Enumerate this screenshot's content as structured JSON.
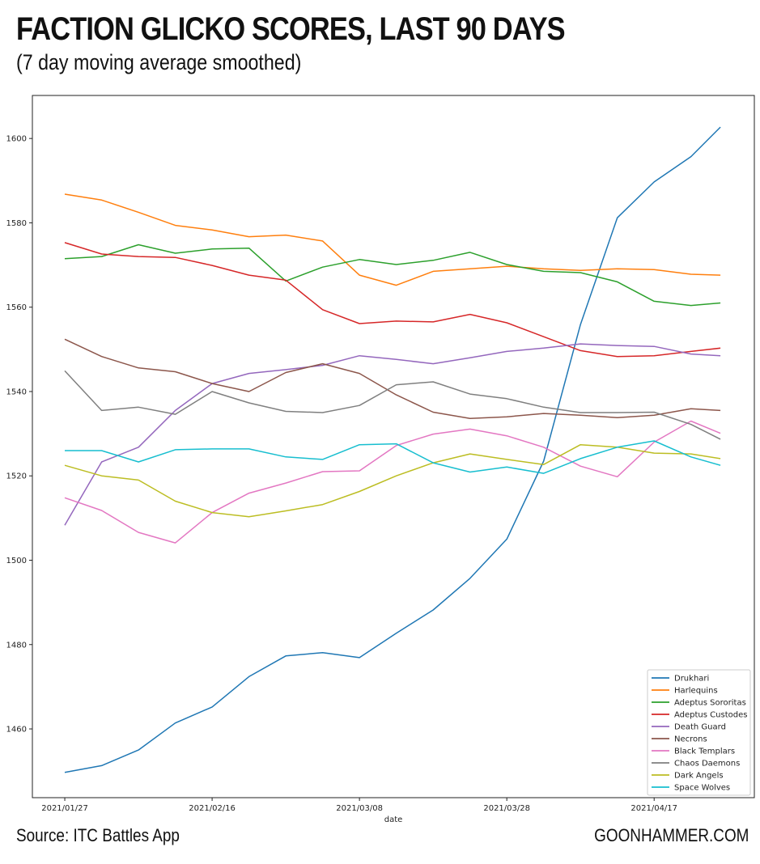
{
  "header": {
    "title": "FACTION GLICKO SCORES, LAST 90 DAYS",
    "subtitle": "(7 day moving average smoothed)"
  },
  "footer": {
    "source": "Source: ITC Battles App",
    "site": "GOONHAMMER.COM"
  },
  "chart_data": {
    "type": "line",
    "title": "FACTION GLICKO SCORES, LAST 90 DAYS",
    "subtitle": "(7 day moving average smoothed)",
    "xlabel": "date",
    "ylabel": "",
    "x_unit": "days since 2021/01/27",
    "x": [
      0,
      5,
      10,
      15,
      20,
      25,
      30,
      35,
      40,
      45,
      50,
      55,
      60,
      65,
      70,
      75,
      80,
      85,
      89
    ],
    "xlim": [
      -4.4,
      93.6
    ],
    "ylim": [
      1443.7,
      1610.2
    ],
    "xticks": [
      {
        "day": 0,
        "label": "2021/01/27"
      },
      {
        "day": 20,
        "label": "2021/02/16"
      },
      {
        "day": 40,
        "label": "2021/03/08"
      },
      {
        "day": 60,
        "label": "2021/03/28"
      },
      {
        "day": 80,
        "label": "2021/04/17"
      }
    ],
    "yticks": [
      1460,
      1480,
      1500,
      1520,
      1540,
      1560,
      1580,
      1600
    ],
    "grid": false,
    "legend_position": "bottom-right",
    "series": [
      {
        "name": "Drukhari",
        "color": "#1f77b4",
        "values": [
          1449.7,
          1451.3,
          1455.0,
          1461.4,
          1465.2,
          1472.4,
          1477.3,
          1478.1,
          1476.9,
          1482.7,
          1488.2,
          1495.7,
          1505.0,
          1523.5,
          1555.9,
          1581.2,
          1589.7,
          1595.7,
          1602.7
        ]
      },
      {
        "name": "Harlequins",
        "color": "#ff7f0e",
        "values": [
          1586.8,
          1585.4,
          1582.5,
          1579.4,
          1578.3,
          1576.7,
          1577.1,
          1575.7,
          1567.6,
          1565.2,
          1568.5,
          1569.1,
          1569.7,
          1569.1,
          1568.7,
          1569.1,
          1568.9,
          1567.8,
          1567.6
        ]
      },
      {
        "name": "Adeptus Sororitas",
        "color": "#2ca02c",
        "values": [
          1571.5,
          1572.0,
          1574.8,
          1572.8,
          1573.8,
          1574.0,
          1566.2,
          1569.5,
          1571.3,
          1570.1,
          1571.1,
          1573.0,
          1570.1,
          1568.5,
          1568.2,
          1566.0,
          1561.4,
          1560.4,
          1561.0
        ]
      },
      {
        "name": "Adeptus Custodes",
        "color": "#d62728",
        "values": [
          1575.3,
          1572.6,
          1572.0,
          1571.8,
          1569.9,
          1567.6,
          1566.4,
          1559.4,
          1556.1,
          1556.7,
          1556.5,
          1558.3,
          1556.3,
          1553.0,
          1549.7,
          1548.3,
          1548.5,
          1549.5,
          1550.3
        ]
      },
      {
        "name": "Death Guard",
        "color": "#9467bd",
        "values": [
          1508.3,
          1523.3,
          1526.8,
          1535.5,
          1541.9,
          1544.3,
          1545.2,
          1546.2,
          1548.5,
          1547.6,
          1546.6,
          1548.0,
          1549.5,
          1550.3,
          1551.3,
          1550.9,
          1550.7,
          1548.9,
          1548.5
        ]
      },
      {
        "name": "Necrons",
        "color": "#8c564b",
        "values": [
          1552.4,
          1548.3,
          1545.6,
          1544.7,
          1541.9,
          1540.0,
          1544.5,
          1546.6,
          1544.3,
          1539.2,
          1535.1,
          1533.6,
          1534.0,
          1534.8,
          1534.4,
          1533.8,
          1534.4,
          1535.9,
          1535.5
        ]
      },
      {
        "name": "Black Templars",
        "color": "#e377c2",
        "values": [
          1514.8,
          1511.8,
          1506.6,
          1504.1,
          1511.3,
          1515.9,
          1518.3,
          1521.0,
          1521.2,
          1527.2,
          1529.9,
          1531.1,
          1529.5,
          1526.8,
          1522.3,
          1519.8,
          1528.0,
          1533.0,
          1530.1
        ]
      },
      {
        "name": "Chaos Daemons",
        "color": "#7f7f7f",
        "values": [
          1544.9,
          1535.5,
          1536.3,
          1534.6,
          1540.0,
          1537.3,
          1535.3,
          1535.0,
          1536.7,
          1541.6,
          1542.3,
          1539.4,
          1538.3,
          1536.3,
          1535.0,
          1535.0,
          1535.1,
          1532.2,
          1528.7
        ]
      },
      {
        "name": "Dark Angels",
        "color": "#bcbd22",
        "values": [
          1522.5,
          1520.0,
          1519.0,
          1514.0,
          1511.3,
          1510.3,
          1511.7,
          1513.2,
          1516.3,
          1520.0,
          1523.1,
          1525.2,
          1523.9,
          1522.7,
          1527.4,
          1526.8,
          1525.4,
          1525.2,
          1524.1
        ]
      },
      {
        "name": "Space Wolves",
        "color": "#17becf",
        "values": [
          1526.0,
          1526.0,
          1523.3,
          1526.2,
          1526.4,
          1526.4,
          1524.5,
          1523.9,
          1527.4,
          1527.6,
          1523.1,
          1520.9,
          1522.1,
          1520.6,
          1524.1,
          1526.8,
          1528.3,
          1524.5,
          1522.5
        ]
      }
    ]
  }
}
